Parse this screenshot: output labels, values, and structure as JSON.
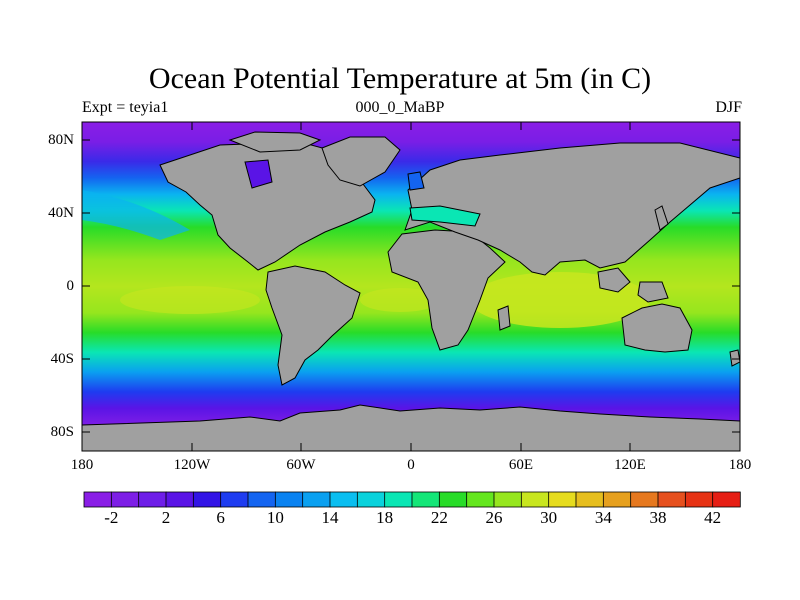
{
  "title": "Ocean Potential Temperature at 5m (in C)",
  "subtitle_left": "Expt = teyia1",
  "subtitle_center": "000_0_MaBP",
  "subtitle_right": "DJF",
  "lat_ticks": [
    "80N",
    "40N",
    "0",
    "40S",
    "80S"
  ],
  "lon_ticks": [
    "180",
    "120W",
    "60W",
    "0",
    "60E",
    "120E",
    "180"
  ],
  "colorbar": {
    "labels": [
      "-2",
      "2",
      "6",
      "10",
      "14",
      "18",
      "22",
      "26",
      "30",
      "34",
      "38",
      "42"
    ],
    "colors": [
      "#8a1ee6",
      "#7d1ee6",
      "#6e1ee8",
      "#5a14e6",
      "#3214e6",
      "#1e3cf0",
      "#1464f0",
      "#0a82f0",
      "#0aa0f0",
      "#0abef0",
      "#0ad2dc",
      "#0ae6b4",
      "#14e678",
      "#28dc28",
      "#64e61e",
      "#96e61e",
      "#c8e61e",
      "#e6dc1e",
      "#e6be1e",
      "#e6a01e",
      "#e6781e",
      "#e6501e",
      "#e63214",
      "#e61e14"
    ]
  },
  "colors": {
    "land": "#a0a0a0",
    "background": "#ffffff"
  }
}
